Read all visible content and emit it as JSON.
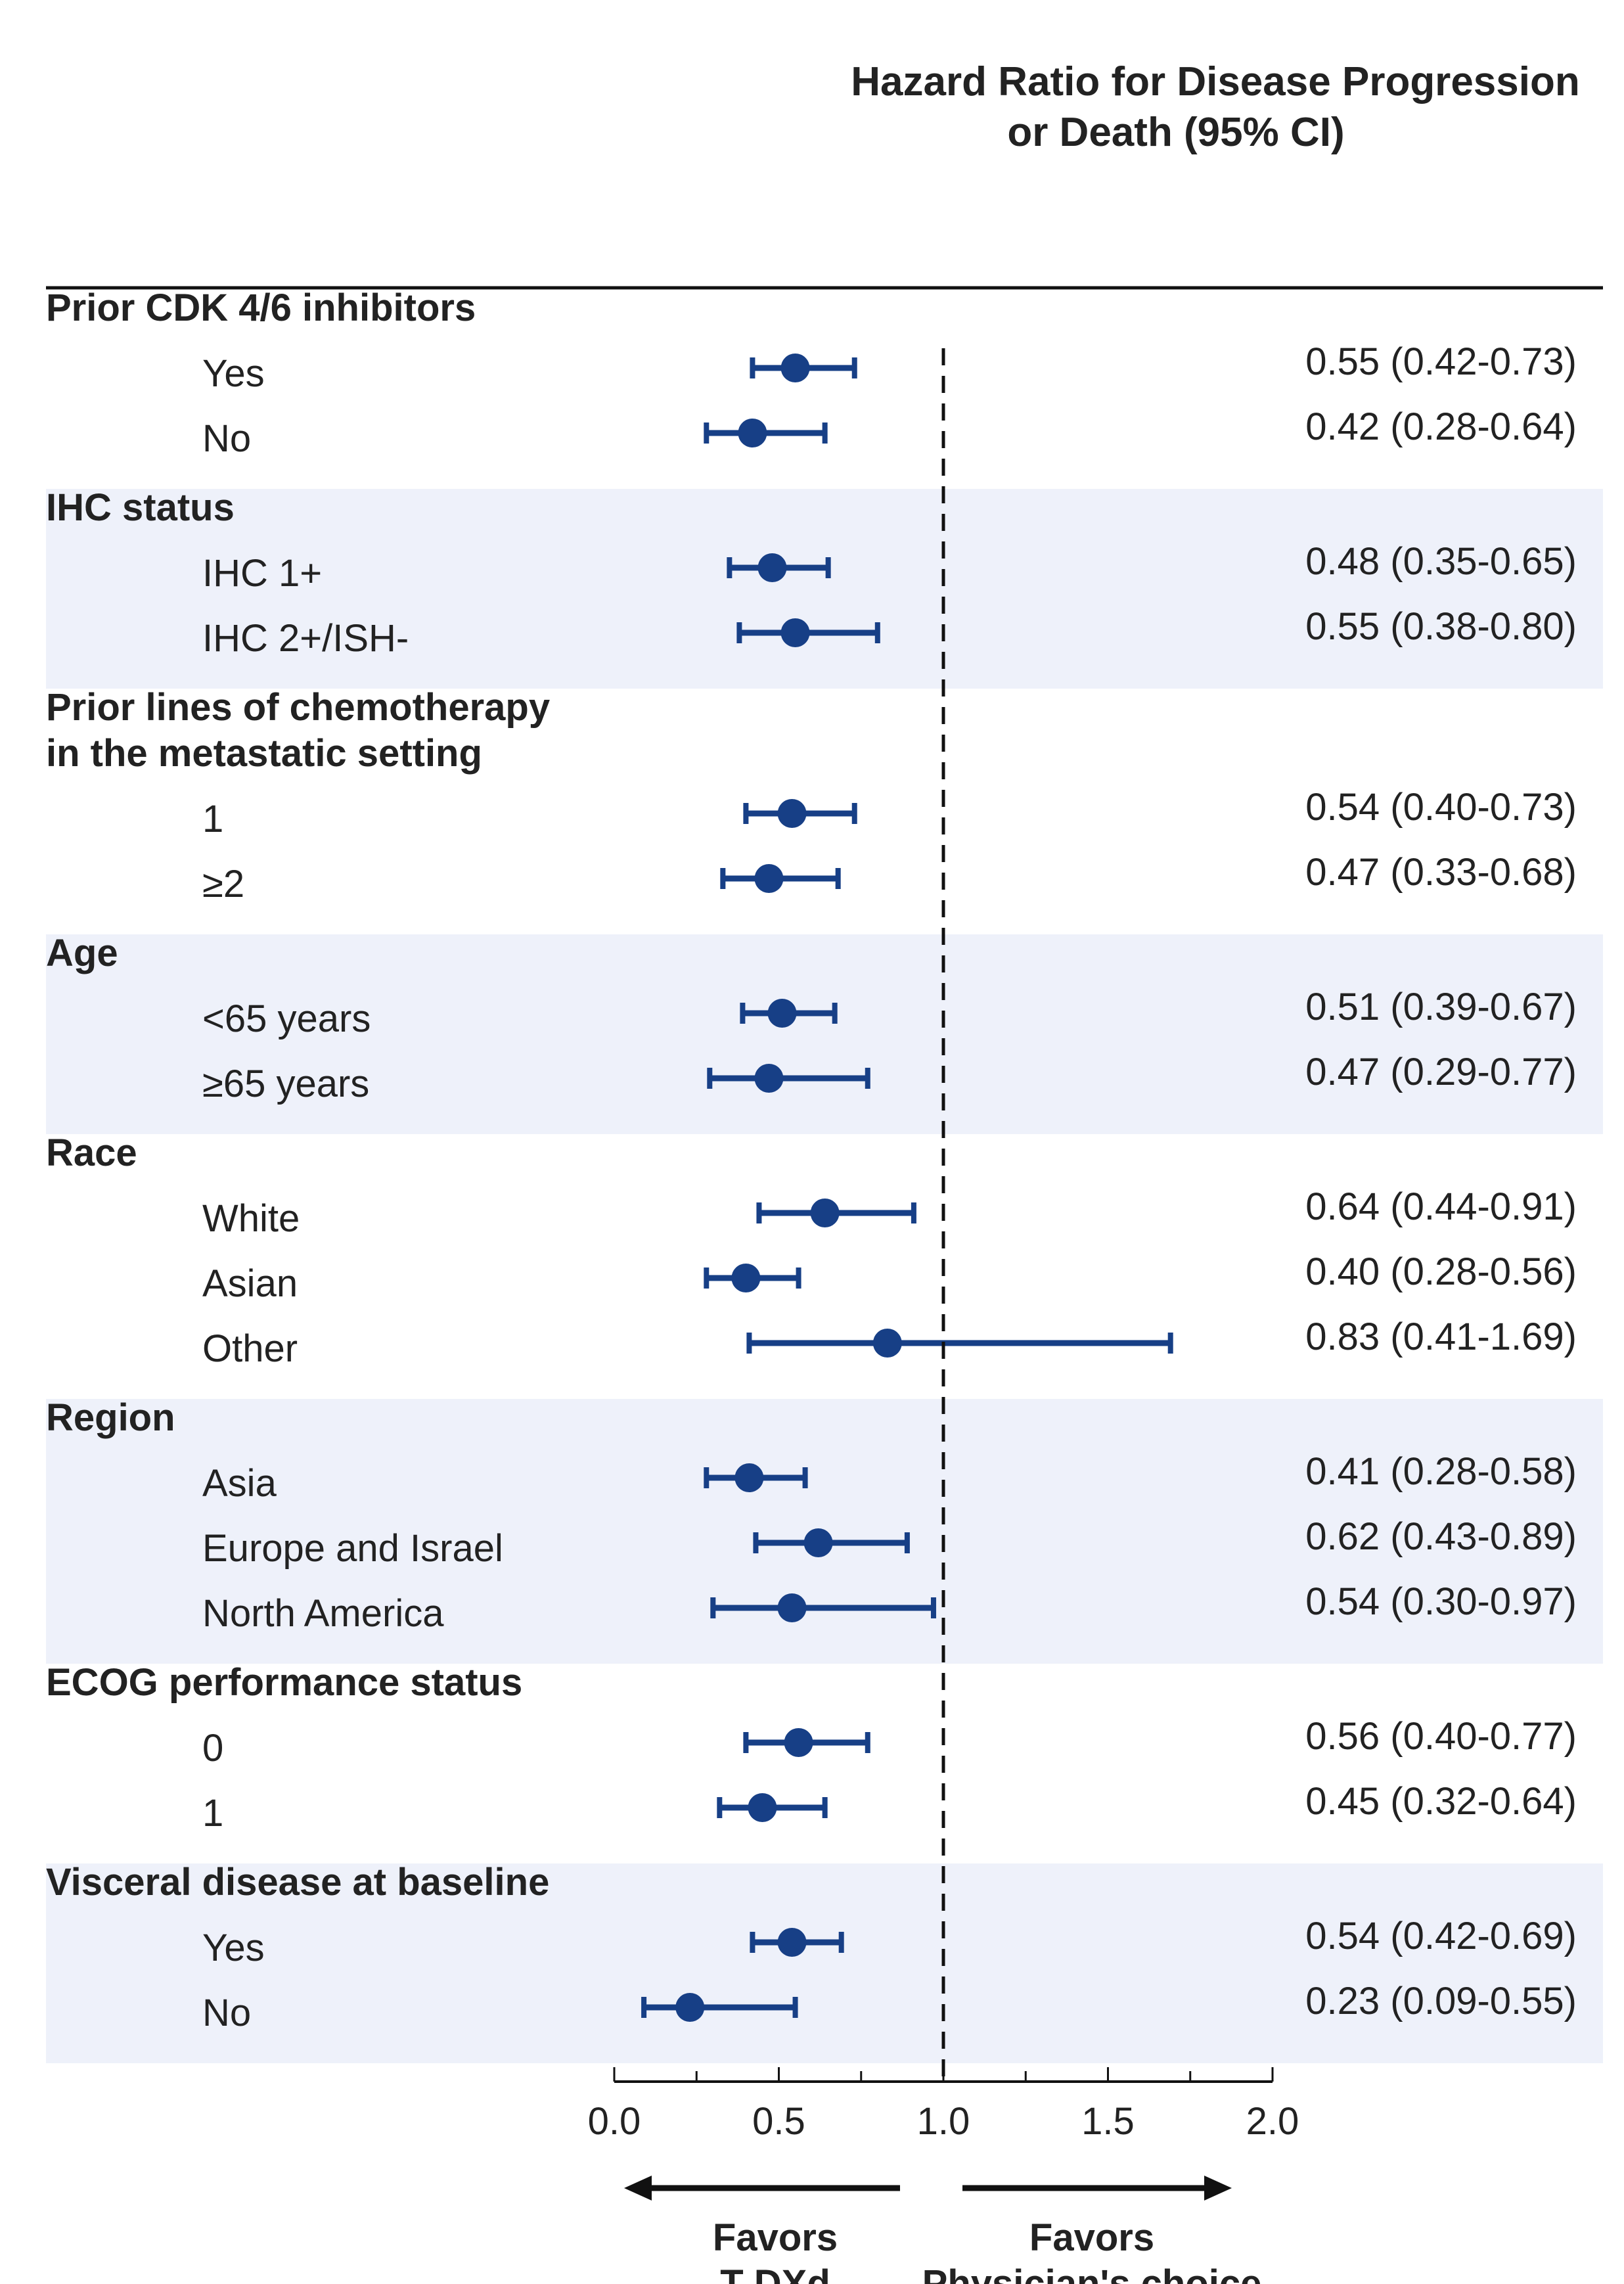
{
  "header": {
    "title_line1": "Hazard Ratio for Disease Progression",
    "title_line2": "or Death  (95% CI)"
  },
  "colors": {
    "marker": "#173f86",
    "band": "#eef1fa",
    "rule": "#111111"
  },
  "chart_data": {
    "type": "forest",
    "xlim": [
      0.0,
      2.0
    ],
    "reference_line": 1.0,
    "x_ticks": [
      "0.0",
      "0.5",
      "1.0",
      "1.5",
      "2.0"
    ],
    "favors_left": [
      "Favors",
      "T-DXd"
    ],
    "favors_right": [
      "Favors",
      "Physician's choice"
    ],
    "groups": [
      {
        "label": [
          "Prior CDK 4/6 inhibitors"
        ],
        "shaded": false,
        "rows": [
          {
            "label": "Yes",
            "hr": 0.55,
            "lo": 0.42,
            "hi": 0.73,
            "text": "0.55 (0.42-0.73)"
          },
          {
            "label": "No",
            "hr": 0.42,
            "lo": 0.28,
            "hi": 0.64,
            "text": "0.42 (0.28-0.64)"
          }
        ]
      },
      {
        "label": [
          "IHC status"
        ],
        "shaded": true,
        "rows": [
          {
            "label": "IHC 1+",
            "hr": 0.48,
            "lo": 0.35,
            "hi": 0.65,
            "text": "0.48 (0.35-0.65)"
          },
          {
            "label": "IHC 2+/ISH-",
            "hr": 0.55,
            "lo": 0.38,
            "hi": 0.8,
            "text": "0.55 (0.38-0.80)"
          }
        ]
      },
      {
        "label": [
          "Prior lines of chemotherapy",
          "in the metastatic setting"
        ],
        "shaded": false,
        "rows": [
          {
            "label": "1",
            "hr": 0.54,
            "lo": 0.4,
            "hi": 0.73,
            "text": "0.54 (0.40-0.73)"
          },
          {
            "label": "≥2",
            "hr": 0.47,
            "lo": 0.33,
            "hi": 0.68,
            "text": "0.47 (0.33-0.68)"
          }
        ]
      },
      {
        "label": [
          "Age"
        ],
        "shaded": true,
        "rows": [
          {
            "label": "<65 years",
            "hr": 0.51,
            "lo": 0.39,
            "hi": 0.67,
            "text": "0.51 (0.39-0.67)"
          },
          {
            "label": "≥65 years",
            "hr": 0.47,
            "lo": 0.29,
            "hi": 0.77,
            "text": "0.47 (0.29-0.77)"
          }
        ]
      },
      {
        "label": [
          "Race"
        ],
        "shaded": false,
        "rows": [
          {
            "label": "White",
            "hr": 0.64,
            "lo": 0.44,
            "hi": 0.91,
            "text": "0.64 (0.44-0.91)"
          },
          {
            "label": "Asian",
            "hr": 0.4,
            "lo": 0.28,
            "hi": 0.56,
            "text": "0.40 (0.28-0.56)"
          },
          {
            "label": "Other",
            "hr": 0.83,
            "lo": 0.41,
            "hi": 1.69,
            "text": "0.83 (0.41-1.69)"
          }
        ]
      },
      {
        "label": [
          "Region"
        ],
        "shaded": true,
        "rows": [
          {
            "label": "Asia",
            "hr": 0.41,
            "lo": 0.28,
            "hi": 0.58,
            "text": "0.41 (0.28-0.58)"
          },
          {
            "label": "Europe and Israel",
            "hr": 0.62,
            "lo": 0.43,
            "hi": 0.89,
            "text": "0.62 (0.43-0.89)"
          },
          {
            "label": "North America",
            "hr": 0.54,
            "lo": 0.3,
            "hi": 0.97,
            "text": "0.54 (0.30-0.97)"
          }
        ]
      },
      {
        "label": [
          "ECOG performance status"
        ],
        "shaded": false,
        "rows": [
          {
            "label": "0",
            "hr": 0.56,
            "lo": 0.4,
            "hi": 0.77,
            "text": "0.56 (0.40-0.77)"
          },
          {
            "label": "1",
            "hr": 0.45,
            "lo": 0.32,
            "hi": 0.64,
            "text": "0.45 (0.32-0.64)"
          }
        ]
      },
      {
        "label": [
          "Visceral disease at baseline"
        ],
        "shaded": true,
        "rows": [
          {
            "label": "Yes",
            "hr": 0.54,
            "lo": 0.42,
            "hi": 0.69,
            "text": "0.54 (0.42-0.69)"
          },
          {
            "label": "No",
            "hr": 0.23,
            "lo": 0.09,
            "hi": 0.55,
            "text": "0.23 (0.09-0.55)"
          }
        ]
      }
    ]
  }
}
